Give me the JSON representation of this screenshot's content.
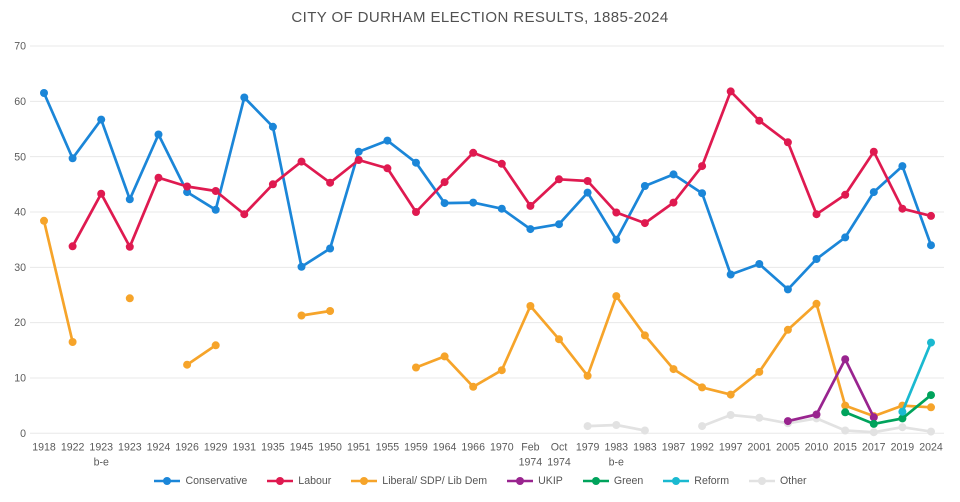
{
  "chart_data": {
    "type": "line",
    "title": "CITY OF DURHAM ELECTION RESULTS, 1885-2024",
    "ylabel": "",
    "xlabel": "",
    "ylim": [
      0,
      70
    ],
    "yticks": [
      0,
      10,
      20,
      30,
      40,
      50,
      60,
      70
    ],
    "grid": "horizontal",
    "legend_position": "bottom",
    "categories": [
      "1918",
      "1922",
      "1923\nb-e",
      "1923",
      "1924",
      "1926",
      "1929",
      "1931",
      "1935",
      "1945",
      "1950",
      "1951",
      "1955",
      "1959",
      "1964",
      "1966",
      "1970",
      "Feb\n1974",
      "Oct\n1974",
      "1979",
      "1983\nb-e",
      "1983",
      "1987",
      "1992",
      "1997",
      "2001",
      "2005",
      "2010",
      "2015",
      "2017",
      "2019",
      "2024"
    ],
    "series": [
      {
        "name": "Conservative",
        "color": "#1b86d8",
        "z": 1,
        "values": [
          61.5,
          49.7,
          56.7,
          42.3,
          54.0,
          43.6,
          40.4,
          60.7,
          55.4,
          30.1,
          33.4,
          50.9,
          52.9,
          48.9,
          41.6,
          41.7,
          40.6,
          36.9,
          37.8,
          43.5,
          35.0,
          44.7,
          46.8,
          43.4,
          28.7,
          30.6,
          26.0,
          31.5,
          35.4,
          43.6,
          48.3,
          34.0
        ]
      },
      {
        "name": "Labour",
        "color": "#df1a50",
        "z": 2,
        "values": [
          null,
          33.8,
          43.3,
          33.7,
          46.2,
          44.6,
          43.8,
          39.6,
          45.0,
          49.1,
          45.3,
          49.4,
          47.9,
          40.0,
          45.4,
          50.7,
          48.7,
          41.1,
          45.9,
          45.6,
          39.9,
          38.0,
          41.7,
          48.3,
          61.8,
          56.5,
          52.6,
          39.6,
          43.1,
          50.9,
          40.6,
          39.3
        ]
      },
      {
        "name": "Liberal/ SDP/ Lib Dem",
        "color": "#f6a42a",
        "z": 3,
        "values": [
          38.4,
          16.5,
          null,
          24.4,
          null,
          12.4,
          15.9,
          null,
          null,
          21.3,
          22.1,
          null,
          null,
          11.9,
          13.9,
          8.4,
          11.4,
          23.0,
          17.0,
          10.4,
          24.8,
          17.7,
          11.6,
          8.3,
          7.0,
          11.1,
          18.7,
          23.4,
          5.0,
          3.1,
          5.0,
          4.7
        ]
      },
      {
        "name": "UKIP",
        "color": "#99248f",
        "z": 4,
        "values": [
          null,
          null,
          null,
          null,
          null,
          null,
          null,
          null,
          null,
          null,
          null,
          null,
          null,
          null,
          null,
          null,
          null,
          null,
          null,
          null,
          null,
          null,
          null,
          null,
          null,
          null,
          2.2,
          3.4,
          13.4,
          2.9,
          null,
          null
        ]
      },
      {
        "name": "Green",
        "color": "#00a35c",
        "z": 5,
        "values": [
          null,
          null,
          null,
          null,
          null,
          null,
          null,
          null,
          null,
          null,
          null,
          null,
          null,
          null,
          null,
          null,
          null,
          null,
          null,
          null,
          null,
          null,
          null,
          null,
          null,
          null,
          null,
          null,
          3.8,
          1.7,
          2.7,
          6.9
        ]
      },
      {
        "name": "Reform",
        "color": "#1ab9d0",
        "z": 6,
        "values": [
          null,
          null,
          null,
          null,
          null,
          null,
          null,
          null,
          null,
          null,
          null,
          null,
          null,
          null,
          null,
          null,
          null,
          null,
          null,
          null,
          null,
          null,
          null,
          null,
          null,
          null,
          null,
          null,
          null,
          null,
          3.9,
          16.4
        ]
      },
      {
        "name": "Other",
        "color": "#e2e2e2",
        "z": 0,
        "values": [
          null,
          null,
          null,
          null,
          null,
          null,
          null,
          null,
          null,
          null,
          null,
          null,
          null,
          null,
          null,
          null,
          null,
          null,
          null,
          1.3,
          1.5,
          0.5,
          null,
          1.3,
          3.3,
          2.8,
          1.8,
          2.7,
          0.5,
          0.2,
          1.1,
          0.3
        ]
      }
    ]
  }
}
